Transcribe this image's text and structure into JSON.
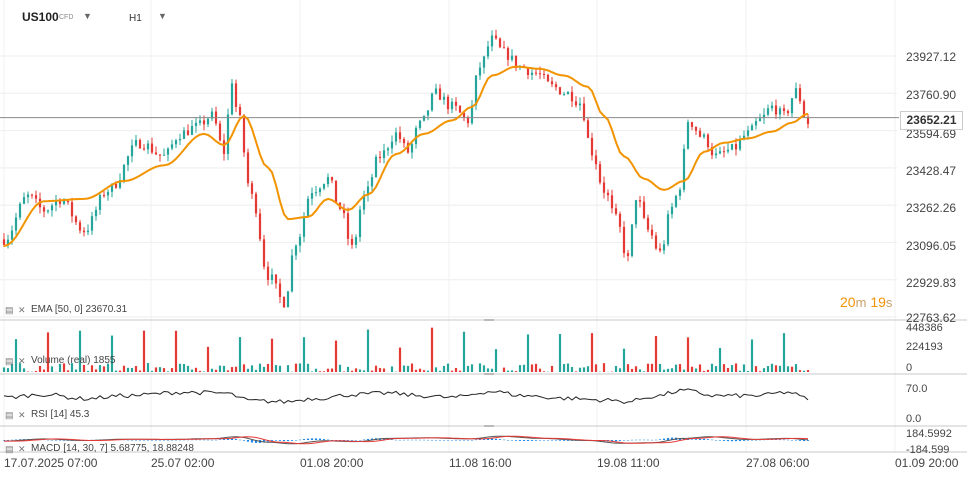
{
  "header": {
    "symbol": "US100",
    "symbol_type": "CFD",
    "timeframe": "H1"
  },
  "current_price": "23652.21",
  "countdown": {
    "minutes": "20",
    "min_unit": "m",
    "seconds": "19",
    "sec_unit": "s"
  },
  "indicators": {
    "ema_label": "EMA [50, 0] 23670.31",
    "volume_label": "Volume (real) 1855",
    "rsi_label": "RSI [14] 45.3",
    "macd_label": "MACD [14, 30, 7] 5.68775, 18.88248"
  },
  "price_axis": [
    "23927.12",
    "23760.90",
    "23594.69",
    "23428.47",
    "23262.26",
    "23096.05",
    "22929.83",
    "22763.62"
  ],
  "volume_axis": [
    "448386",
    "224193",
    "0"
  ],
  "rsi_axis": [
    "70.0",
    "0.0"
  ],
  "macd_axis": [
    "184.5992",
    "-184.599"
  ],
  "time_axis": [
    "17.07.2025 07:00",
    "25.07 02:00",
    "01.08 20:00",
    "11.08 16:00",
    "19.08 11:00",
    "27.08 06:00",
    "01.09 20:00"
  ],
  "colors": {
    "up": "#26a69a",
    "down": "#e53935",
    "ema": "#f29400",
    "rsi": "#222222",
    "macd": "#1e88e5",
    "signal": "#e53935"
  },
  "chart_data": {
    "type": "candlestick",
    "symbol": "US100",
    "timeframe": "H1",
    "ylim": [
      22763.62,
      23927.12
    ],
    "price_anchors": [
      [
        0,
        23110
      ],
      [
        6,
        23300
      ],
      [
        10,
        23240
      ],
      [
        14,
        23290
      ],
      [
        20,
        23150
      ],
      [
        26,
        23330
      ],
      [
        34,
        23540
      ],
      [
        40,
        23480
      ],
      [
        44,
        23580
      ],
      [
        48,
        23610
      ],
      [
        52,
        23660
      ],
      [
        55,
        23500
      ],
      [
        57,
        23820
      ],
      [
        58,
        23700
      ],
      [
        62,
        23300
      ],
      [
        66,
        22950
      ],
      [
        70,
        22830
      ],
      [
        73,
        23100
      ],
      [
        77,
        23330
      ],
      [
        81,
        23380
      ],
      [
        84,
        23250
      ],
      [
        87,
        23070
      ],
      [
        90,
        23300
      ],
      [
        94,
        23480
      ],
      [
        98,
        23580
      ],
      [
        101,
        23500
      ],
      [
        104,
        23620
      ],
      [
        108,
        23760
      ],
      [
        112,
        23700
      ],
      [
        116,
        23640
      ],
      [
        119,
        23880
      ],
      [
        122,
        24000
      ],
      [
        125,
        23940
      ],
      [
        129,
        23880
      ],
      [
        133,
        23850
      ],
      [
        137,
        23790
      ],
      [
        141,
        23760
      ],
      [
        144,
        23720
      ],
      [
        147,
        23500
      ],
      [
        150,
        23330
      ],
      [
        153,
        23200
      ],
      [
        156,
        23020
      ],
      [
        158,
        23300
      ],
      [
        161,
        23150
      ],
      [
        164,
        23050
      ],
      [
        167,
        23250
      ],
      [
        169,
        23350
      ],
      [
        171,
        23640
      ],
      [
        175,
        23560
      ],
      [
        178,
        23480
      ],
      [
        182,
        23510
      ],
      [
        186,
        23580
      ],
      [
        189,
        23640
      ],
      [
        192,
        23700
      ],
      [
        195,
        23660
      ],
      [
        198,
        23770
      ],
      [
        201,
        23630
      ]
    ],
    "ema_anchors": [
      [
        0,
        23080
      ],
      [
        10,
        23280
      ],
      [
        20,
        23290
      ],
      [
        30,
        23370
      ],
      [
        40,
        23440
      ],
      [
        50,
        23580
      ],
      [
        55,
        23530
      ],
      [
        60,
        23660
      ],
      [
        66,
        23430
      ],
      [
        71,
        23200
      ],
      [
        76,
        23210
      ],
      [
        81,
        23290
      ],
      [
        86,
        23240
      ],
      [
        91,
        23310
      ],
      [
        98,
        23490
      ],
      [
        105,
        23580
      ],
      [
        112,
        23640
      ],
      [
        117,
        23700
      ],
      [
        122,
        23840
      ],
      [
        128,
        23880
      ],
      [
        134,
        23870
      ],
      [
        140,
        23840
      ],
      [
        146,
        23790
      ],
      [
        150,
        23660
      ],
      [
        155,
        23480
      ],
      [
        160,
        23380
      ],
      [
        165,
        23330
      ],
      [
        170,
        23370
      ],
      [
        175,
        23500
      ],
      [
        180,
        23540
      ],
      [
        186,
        23560
      ],
      [
        192,
        23590
      ],
      [
        197,
        23630
      ],
      [
        201,
        23670
      ]
    ],
    "rsi_anchors": [
      [
        0,
        48
      ],
      [
        10,
        55
      ],
      [
        20,
        45
      ],
      [
        30,
        52
      ],
      [
        45,
        60
      ],
      [
        55,
        58
      ],
      [
        62,
        40
      ],
      [
        70,
        38
      ],
      [
        78,
        46
      ],
      [
        88,
        55
      ],
      [
        96,
        58
      ],
      [
        104,
        52
      ],
      [
        112,
        48
      ],
      [
        122,
        62
      ],
      [
        130,
        52
      ],
      [
        140,
        46
      ],
      [
        150,
        42
      ],
      [
        156,
        38
      ],
      [
        162,
        50
      ],
      [
        170,
        64
      ],
      [
        178,
        52
      ],
      [
        188,
        52
      ],
      [
        196,
        60
      ],
      [
        201,
        45
      ]
    ],
    "macd_anchors": [
      [
        0,
        -20
      ],
      [
        10,
        20
      ],
      [
        20,
        -10
      ],
      [
        30,
        15
      ],
      [
        40,
        10
      ],
      [
        52,
        25
      ],
      [
        58,
        60
      ],
      [
        66,
        -40
      ],
      [
        72,
        -70
      ],
      [
        80,
        -15
      ],
      [
        88,
        -30
      ],
      [
        96,
        30
      ],
      [
        106,
        40
      ],
      [
        116,
        20
      ],
      [
        124,
        70
      ],
      [
        134,
        30
      ],
      [
        146,
        -10
      ],
      [
        154,
        -60
      ],
      [
        162,
        -50
      ],
      [
        170,
        30
      ],
      [
        176,
        60
      ],
      [
        186,
        10
      ],
      [
        196,
        30
      ],
      [
        201,
        6
      ]
    ],
    "rsi_ylim": [
      0,
      70
    ],
    "macd_ylim": [
      -184.599,
      184.5992
    ],
    "volume_ylim": [
      0,
      448386
    ],
    "last_volume": 1855,
    "last_ema": 23670.31,
    "last_rsi": 45.3,
    "macd_params": [
      14,
      30,
      7
    ],
    "macd_values": [
      5.68775,
      18.88248
    ],
    "bar_count": 202,
    "x_labels": [
      "17.07.2025 07:00",
      "25.07 02:00",
      "01.08 20:00",
      "11.08 16:00",
      "19.08 11:00",
      "27.08 06:00",
      "01.09 20:00"
    ],
    "grid": true
  }
}
